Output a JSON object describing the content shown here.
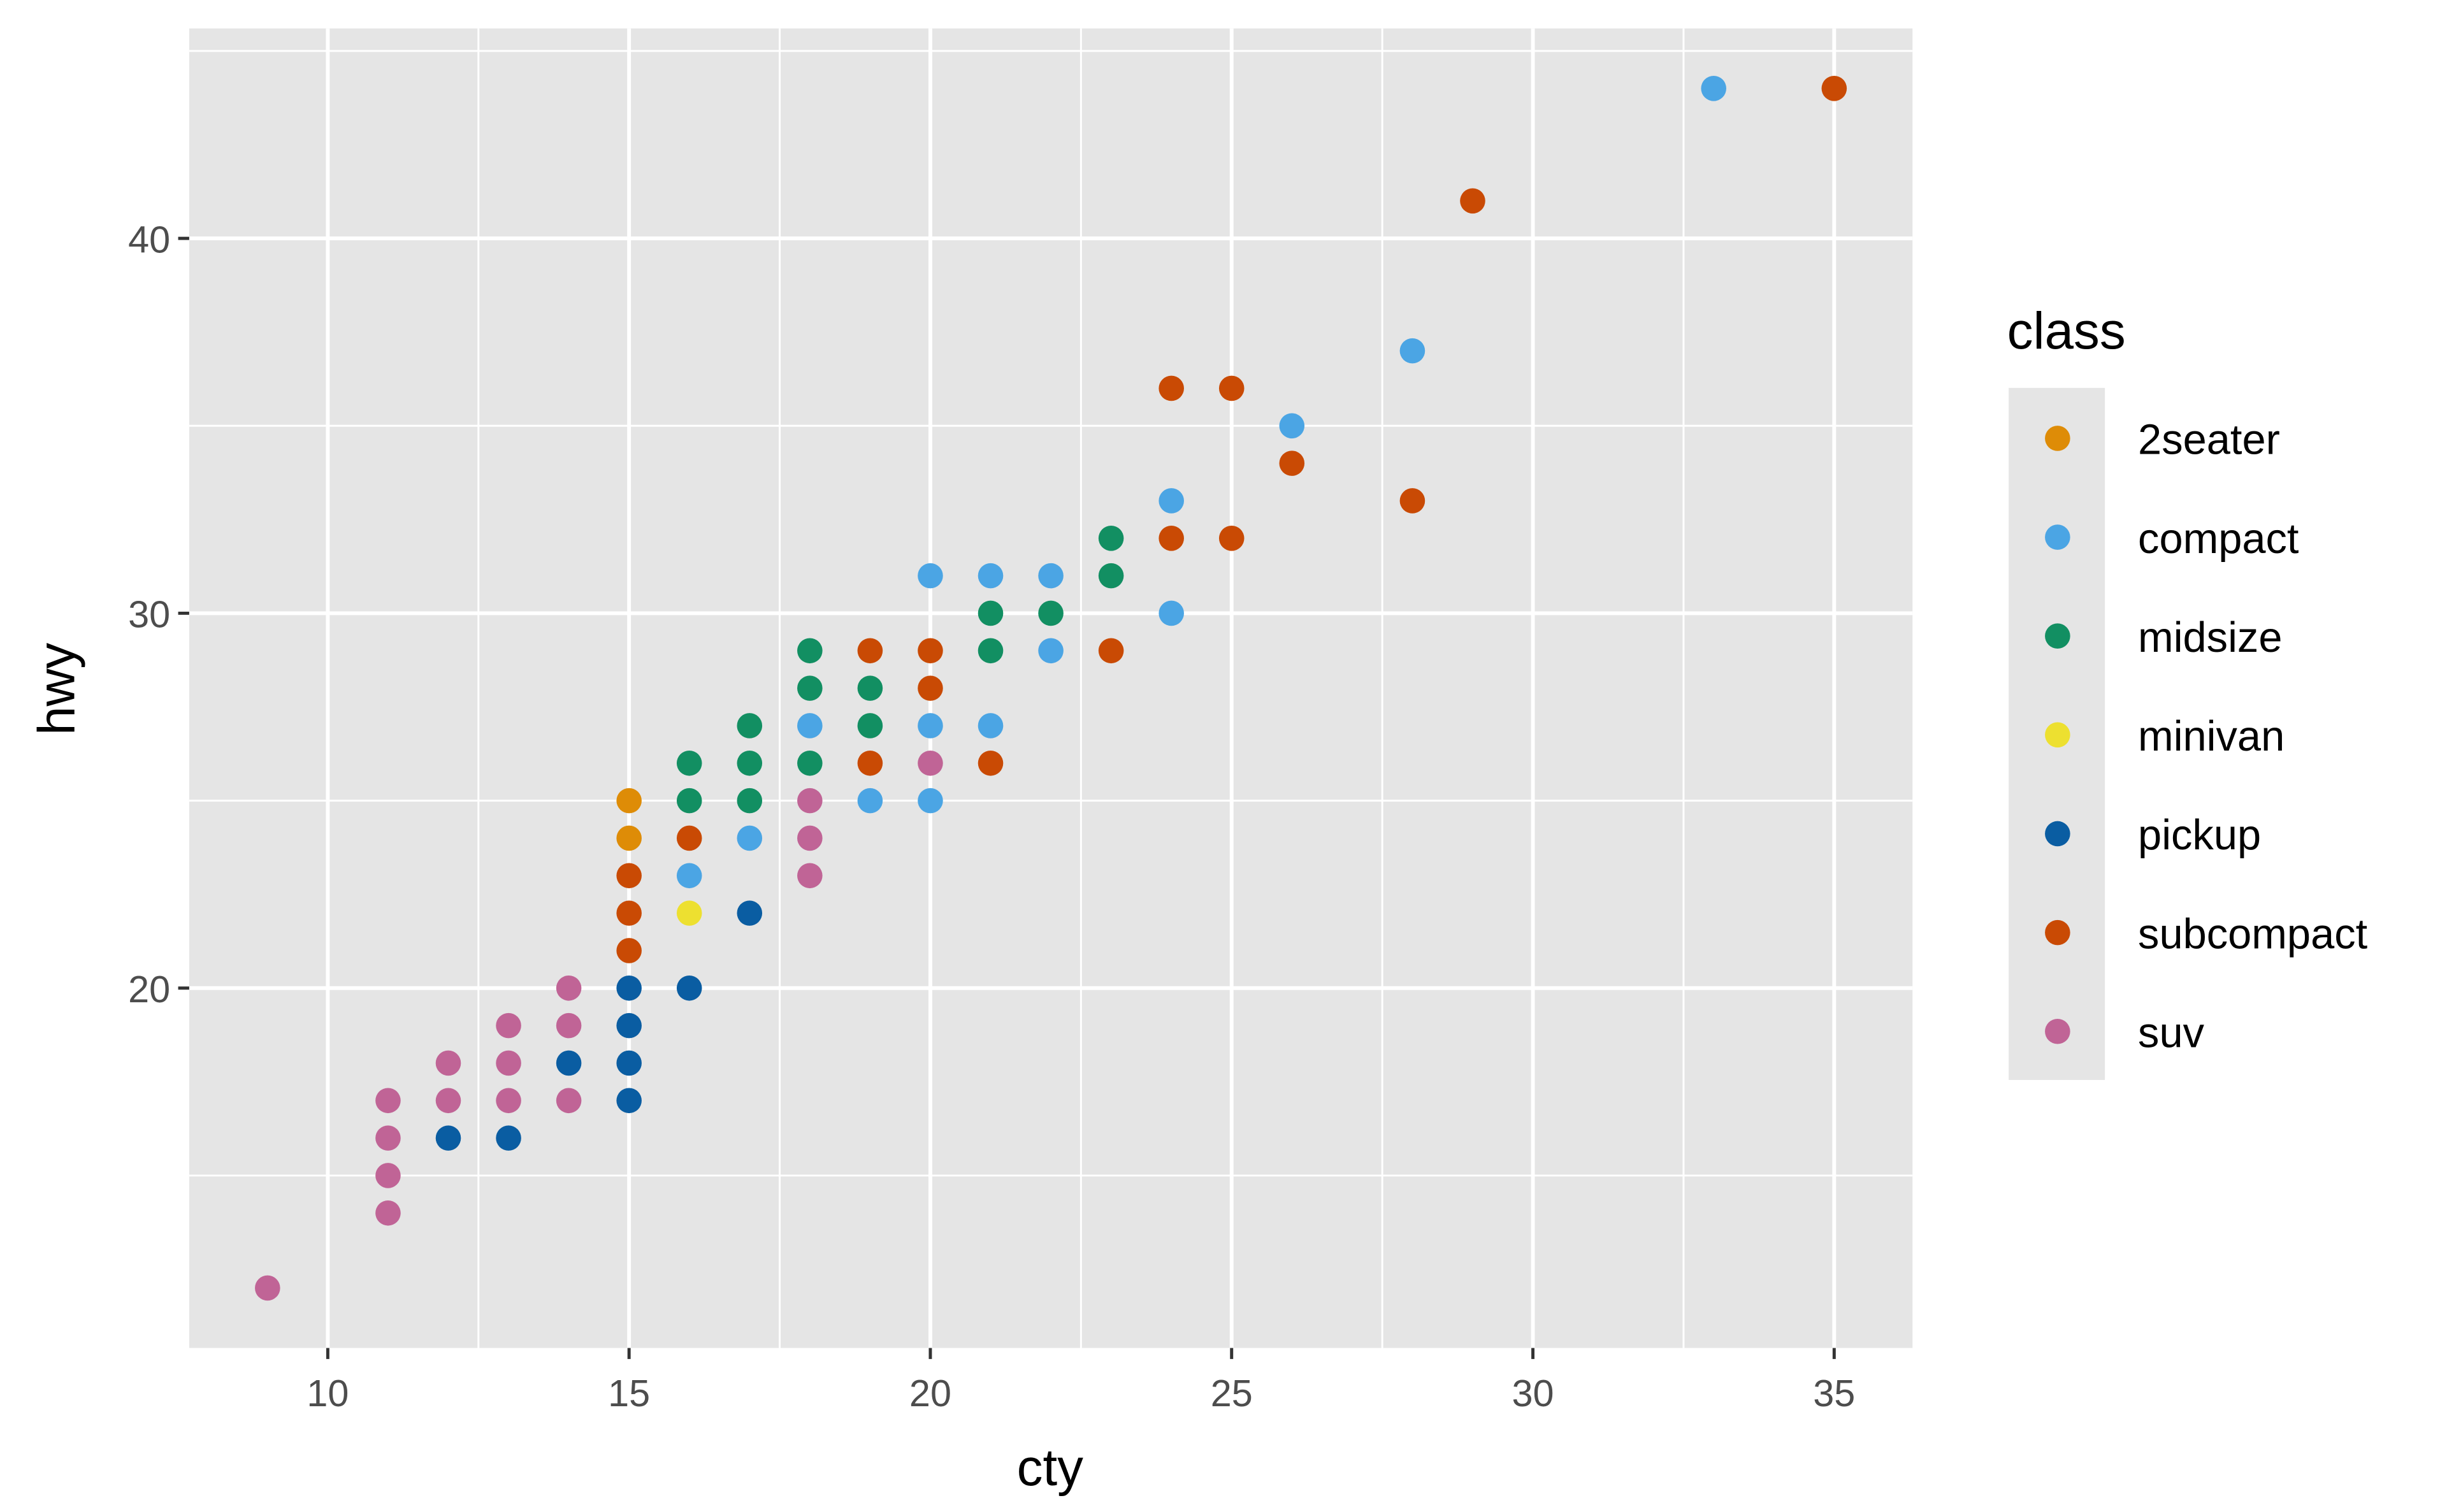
{
  "chart_data": {
    "type": "scatter",
    "xlabel": "cty",
    "ylabel": "hwy",
    "xlim": [
      7.7,
      36.3
    ],
    "ylim": [
      10.4,
      45.6
    ],
    "xticks": [
      10,
      15,
      20,
      25,
      30,
      35
    ],
    "yticks": [
      20,
      30,
      40
    ],
    "grid": true,
    "legend": {
      "title": "class",
      "position": "right"
    },
    "series": [
      {
        "name": "2seater",
        "color": "#DE8C07",
        "points": [
          [
            15,
            25
          ],
          [
            15,
            24
          ]
        ]
      },
      {
        "name": "compact",
        "color": "#4BA5E4",
        "points": [
          [
            33,
            44
          ],
          [
            28,
            37
          ],
          [
            26,
            35
          ],
          [
            24,
            33
          ],
          [
            24,
            30
          ],
          [
            20,
            31
          ],
          [
            21,
            31
          ],
          [
            22,
            31
          ],
          [
            22,
            29
          ],
          [
            18,
            27
          ],
          [
            20,
            27
          ],
          [
            21,
            27
          ],
          [
            17,
            24
          ],
          [
            16,
            23
          ],
          [
            19,
            25
          ],
          [
            20,
            25
          ]
        ]
      },
      {
        "name": "midsize",
        "color": "#128F62",
        "points": [
          [
            23,
            32
          ],
          [
            23,
            31
          ],
          [
            21,
            30
          ],
          [
            22,
            30
          ],
          [
            21,
            29
          ],
          [
            18,
            29
          ],
          [
            18,
            28
          ],
          [
            19,
            28
          ],
          [
            17,
            27
          ],
          [
            19,
            27
          ],
          [
            16,
            26
          ],
          [
            17,
            26
          ],
          [
            18,
            26
          ],
          [
            16,
            25
          ],
          [
            17,
            25
          ]
        ]
      },
      {
        "name": "minivan",
        "color": "#EDE030",
        "points": [
          [
            16,
            22
          ]
        ]
      },
      {
        "name": "pickup",
        "color": "#0A5DA2",
        "points": [
          [
            17,
            22
          ],
          [
            16,
            20
          ],
          [
            15,
            20
          ],
          [
            15,
            19
          ],
          [
            14,
            18
          ],
          [
            15,
            18
          ],
          [
            15,
            17
          ],
          [
            12,
            16
          ],
          [
            13,
            16
          ]
        ]
      },
      {
        "name": "subcompact",
        "color": "#C94A04",
        "points": [
          [
            35,
            44
          ],
          [
            29,
            41
          ],
          [
            24,
            36
          ],
          [
            25,
            36
          ],
          [
            26,
            34
          ],
          [
            28,
            33
          ],
          [
            24,
            32
          ],
          [
            25,
            32
          ],
          [
            23,
            29
          ],
          [
            19,
            29
          ],
          [
            20,
            29
          ],
          [
            20,
            28
          ],
          [
            19,
            26
          ],
          [
            21,
            26
          ],
          [
            16,
            24
          ],
          [
            15,
            23
          ],
          [
            15,
            22
          ],
          [
            15,
            21
          ]
        ]
      },
      {
        "name": "suv",
        "color": "#C06496",
        "points": [
          [
            20,
            26
          ],
          [
            18,
            25
          ],
          [
            18,
            24
          ],
          [
            18,
            23
          ],
          [
            14,
            20
          ],
          [
            13,
            19
          ],
          [
            14,
            19
          ],
          [
            12,
            18
          ],
          [
            13,
            18
          ],
          [
            11,
            17
          ],
          [
            12,
            17
          ],
          [
            13,
            17
          ],
          [
            14,
            17
          ],
          [
            11,
            16
          ],
          [
            11,
            15
          ],
          [
            11,
            14
          ],
          [
            9,
            12
          ]
        ]
      }
    ]
  }
}
